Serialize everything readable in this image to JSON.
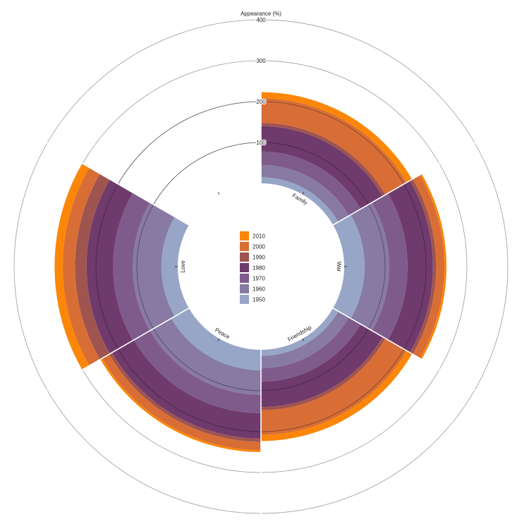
{
  "chart_data": {
    "type": "radial-stacked-bar",
    "axis_title": "Appearance (%)",
    "radial_ticks": [
      100,
      200,
      300,
      400
    ],
    "rmax": 400,
    "categories": [
      "Family",
      "War",
      "Friendship",
      "Peace",
      "Love",
      ""
    ],
    "series": [
      {
        "name": "1950",
        "color": "#97a6c6",
        "values": [
          15,
          50,
          15,
          50,
          40,
          0
        ]
      },
      {
        "name": "1960",
        "color": "#887aa3",
        "values": [
          30,
          60,
          30,
          60,
          70,
          0
        ]
      },
      {
        "name": "1970",
        "color": "#7f5b8b",
        "values": [
          33,
          45,
          33,
          45,
          48,
          0
        ]
      },
      {
        "name": "1980",
        "color": "#6f3a6c",
        "values": [
          62,
          62,
          62,
          62,
          65,
          0
        ]
      },
      {
        "name": "1990",
        "color": "#a0544f",
        "values": [
          8,
          8,
          8,
          8,
          28,
          0
        ]
      },
      {
        "name": "2000",
        "color": "#d86e35",
        "values": [
          60,
          20,
          60,
          20,
          30,
          0
        ]
      },
      {
        "name": "2010",
        "color": "#fb8608",
        "values": [
          15,
          5,
          15,
          5,
          20,
          0
        ]
      }
    ],
    "grid": true,
    "legend_position": "center"
  }
}
